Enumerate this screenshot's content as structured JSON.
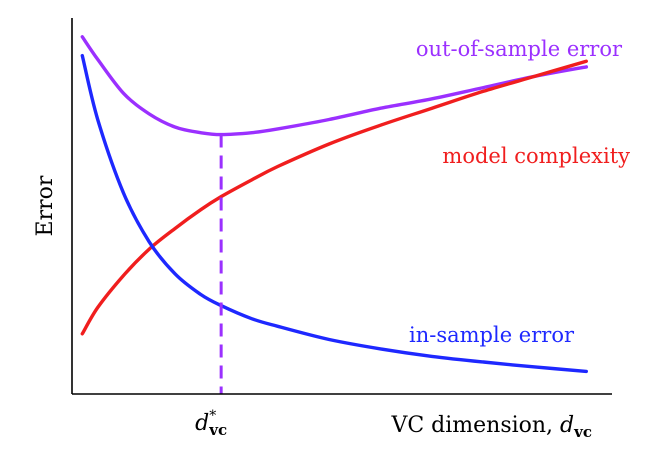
{
  "chart_data": {
    "type": "line",
    "xlabel": "VC dimension, ",
    "xlabel_sub": "vc",
    "ylabel": "Error",
    "grid": false,
    "ticks": [
      {
        "main": "d",
        "sup": "*",
        "sub": "vc",
        "x": 2.9
      }
    ],
    "vline_x": 2.9,
    "xlim": [
      0,
      10.5
    ],
    "ylim": [
      0,
      10
    ],
    "series": [
      {
        "name": "out-of-sample error",
        "color": "#9b30ff",
        "x": [
          0.2,
          0.5,
          1.0,
          1.5,
          2.0,
          2.5,
          2.9,
          3.5,
          4.0,
          5.0,
          6.0,
          7.0,
          8.0,
          9.0,
          10.0
        ],
        "y": [
          9.5,
          8.9,
          8.0,
          7.45,
          7.1,
          6.95,
          6.9,
          6.95,
          7.05,
          7.3,
          7.6,
          7.85,
          8.15,
          8.45,
          8.7
        ]
      },
      {
        "name": "model complexity",
        "color": "#f01e1e",
        "x": [
          0.2,
          0.5,
          1.0,
          1.5,
          2.0,
          2.5,
          2.9,
          3.5,
          4.0,
          5.0,
          6.0,
          7.0,
          8.0,
          9.0,
          10.0
        ],
        "y": [
          1.6,
          2.3,
          3.15,
          3.85,
          4.4,
          4.9,
          5.25,
          5.7,
          6.05,
          6.65,
          7.15,
          7.6,
          8.05,
          8.45,
          8.85
        ]
      },
      {
        "name": "in-sample error",
        "color": "#1e28ff",
        "x": [
          0.2,
          0.5,
          1.0,
          1.5,
          2.0,
          2.5,
          2.9,
          3.5,
          4.0,
          5.0,
          6.0,
          7.0,
          8.0,
          9.0,
          10.0
        ],
        "y": [
          9.0,
          7.3,
          5.35,
          4.05,
          3.2,
          2.65,
          2.35,
          2.0,
          1.8,
          1.45,
          1.2,
          1.0,
          0.85,
          0.72,
          0.6
        ]
      }
    ]
  }
}
